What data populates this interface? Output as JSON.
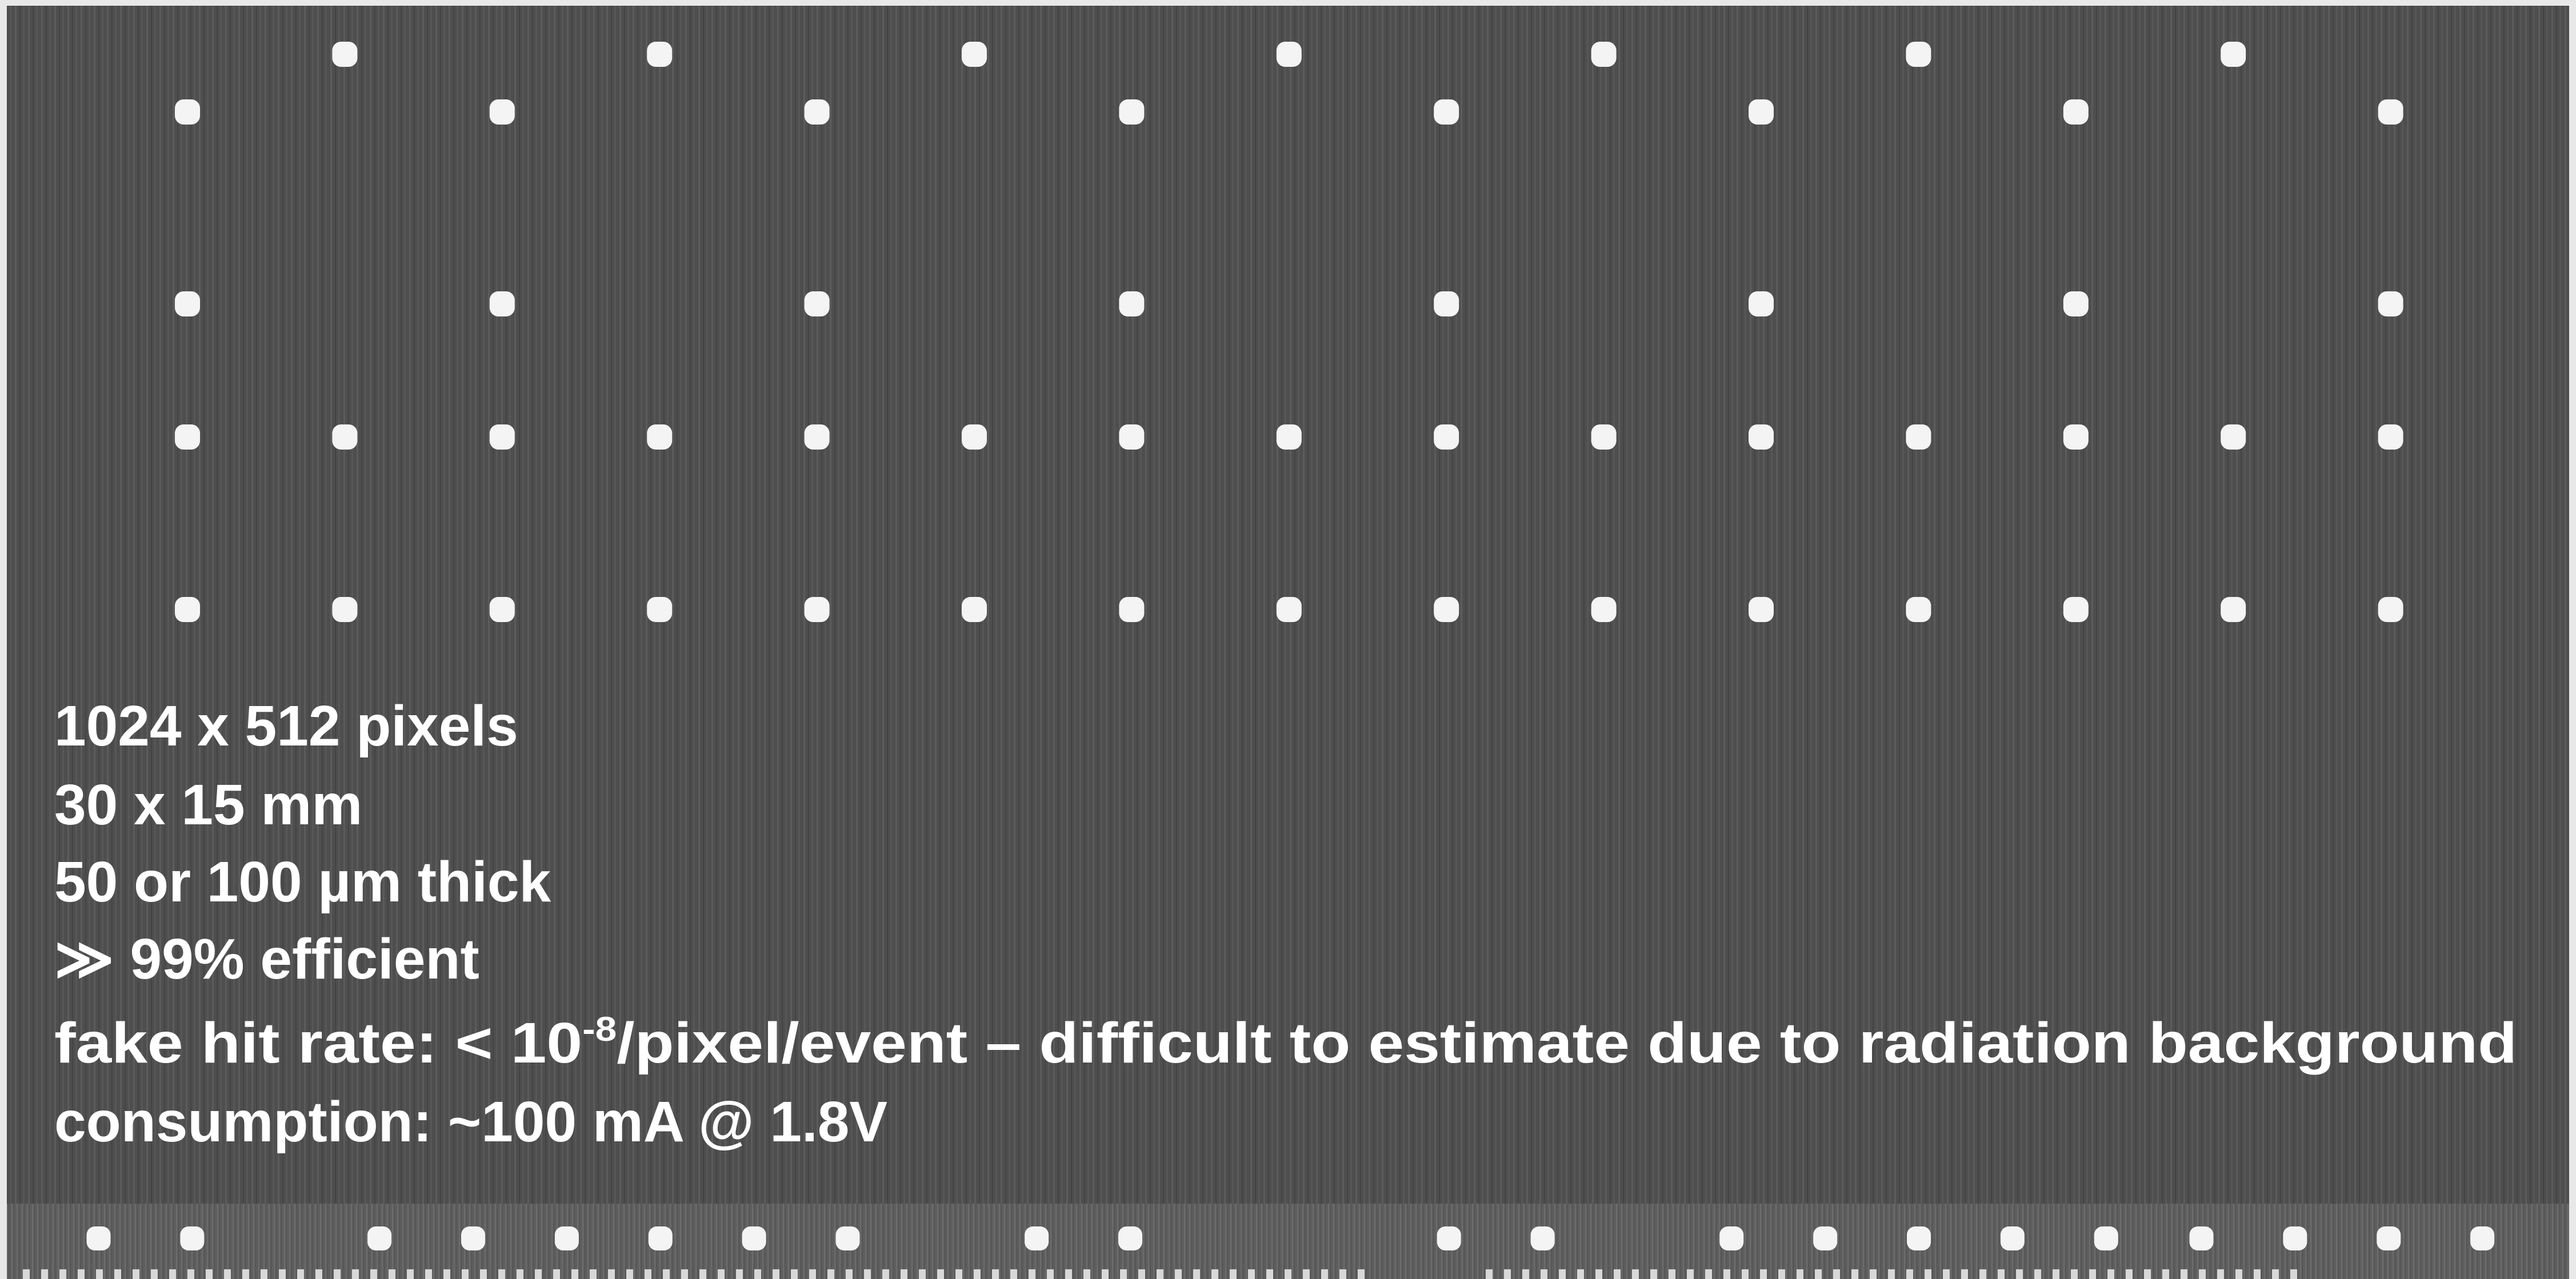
{
  "lines": [
    "1024 x 512 pixels",
    "30 x 15 mm",
    "50 or 100 µm thick",
    "≫ 99% efficient"
  ],
  "fake_hit_rate": {
    "before": "fake hit rate: < 10",
    "exponent": "-8",
    "after": "/pixel/event – difficult to estimate due to radiation background"
  },
  "consumption": "consumption: ~100 mA @ 1.8V"
}
